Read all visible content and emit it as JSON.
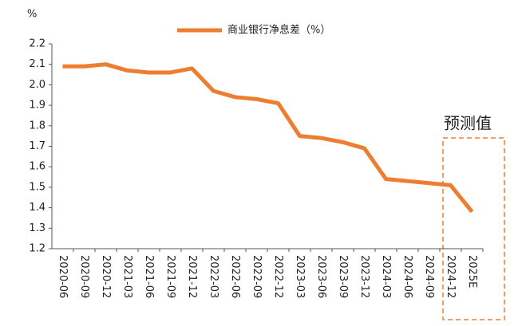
{
  "chart_data": {
    "type": "line",
    "y_axis_label": "%",
    "annotation": "预测值",
    "categories": [
      "2020-06",
      "2020-09",
      "2020-12",
      "2021-03",
      "2021-06",
      "2021-09",
      "2021-12",
      "2022-03",
      "2022-06",
      "2022-09",
      "2022-12",
      "2023-03",
      "2023-06",
      "2023-09",
      "2023-12",
      "2024-03",
      "2024-06",
      "2024-09",
      "2024-12",
      "2025E"
    ],
    "series": [
      {
        "name": "商业银行净息差（%）",
        "color": "#ED7D31",
        "values": [
          2.09,
          2.09,
          2.1,
          2.07,
          2.06,
          2.06,
          2.08,
          1.97,
          1.94,
          1.93,
          1.91,
          1.75,
          1.74,
          1.72,
          1.69,
          1.54,
          1.53,
          1.52,
          1.51,
          1.38
        ]
      }
    ],
    "ylim": [
      1.2,
      2.2
    ],
    "yticks": [
      1.2,
      1.3,
      1.4,
      1.5,
      1.6,
      1.7,
      1.8,
      1.9,
      {
        "value": 2,
        "label": "2.0"
      },
      2.1,
      2.2
    ],
    "legend": "top"
  }
}
